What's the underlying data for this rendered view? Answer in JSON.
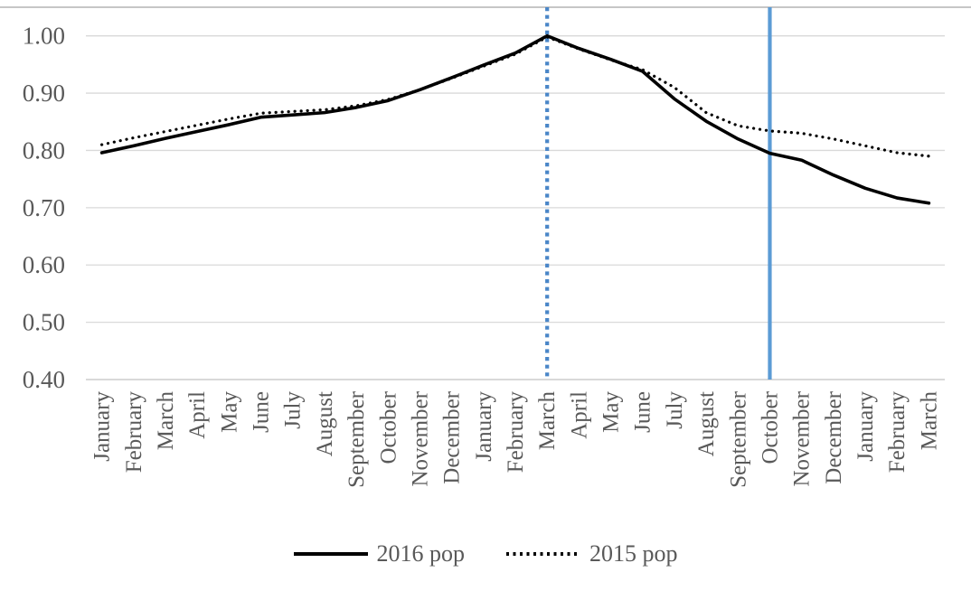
{
  "chart_data": {
    "type": "line",
    "categories": [
      "January",
      "February",
      "March",
      "April",
      "May",
      "June",
      "July",
      "August",
      "September",
      "October",
      "November",
      "December",
      "January",
      "February",
      "March",
      "April",
      "May",
      "June",
      "July",
      "August",
      "September",
      "October",
      "November",
      "December",
      "January",
      "February",
      "March"
    ],
    "series": [
      {
        "name": "2016 pop",
        "style": "solid",
        "color": "#000000",
        "values": [
          0.796,
          0.808,
          0.821,
          0.833,
          0.845,
          0.858,
          0.862,
          0.866,
          0.875,
          0.887,
          0.906,
          0.927,
          0.949,
          0.97,
          1.0,
          0.978,
          0.959,
          0.938,
          0.89,
          0.851,
          0.82,
          0.795,
          0.783,
          0.757,
          0.734,
          0.717,
          0.708
        ]
      },
      {
        "name": "2015 pop",
        "style": "dotted",
        "color": "#000000",
        "values": [
          0.81,
          0.822,
          0.833,
          0.844,
          0.855,
          0.865,
          0.868,
          0.871,
          0.878,
          0.889,
          0.906,
          0.926,
          0.947,
          0.968,
          0.998,
          0.977,
          0.958,
          0.941,
          0.91,
          0.866,
          0.843,
          0.834,
          0.83,
          0.82,
          0.808,
          0.796,
          0.79
        ]
      }
    ],
    "y_axis": {
      "min": 0.4,
      "plot_top": 1.05,
      "tick_interval": 0.1,
      "tick_labels": [
        "1.00",
        "0.90",
        "0.80",
        "0.70",
        "0.60",
        "0.50",
        "0.40"
      ]
    },
    "vertical_lines": [
      {
        "at_category_index": 14,
        "style": "dotted",
        "color": "#4A86C8"
      },
      {
        "at_category_index": 21,
        "style": "solid",
        "color": "#5B9BD5"
      }
    ],
    "legend": {
      "position": "bottom",
      "entries": [
        "2016 pop",
        "2015 pop"
      ]
    },
    "grid": true,
    "colors": {
      "gridline": "#D9D9D9",
      "axis_line": "#D9D9D9",
      "top_border": "#C6C6C6",
      "axis_text": "#595959"
    }
  }
}
